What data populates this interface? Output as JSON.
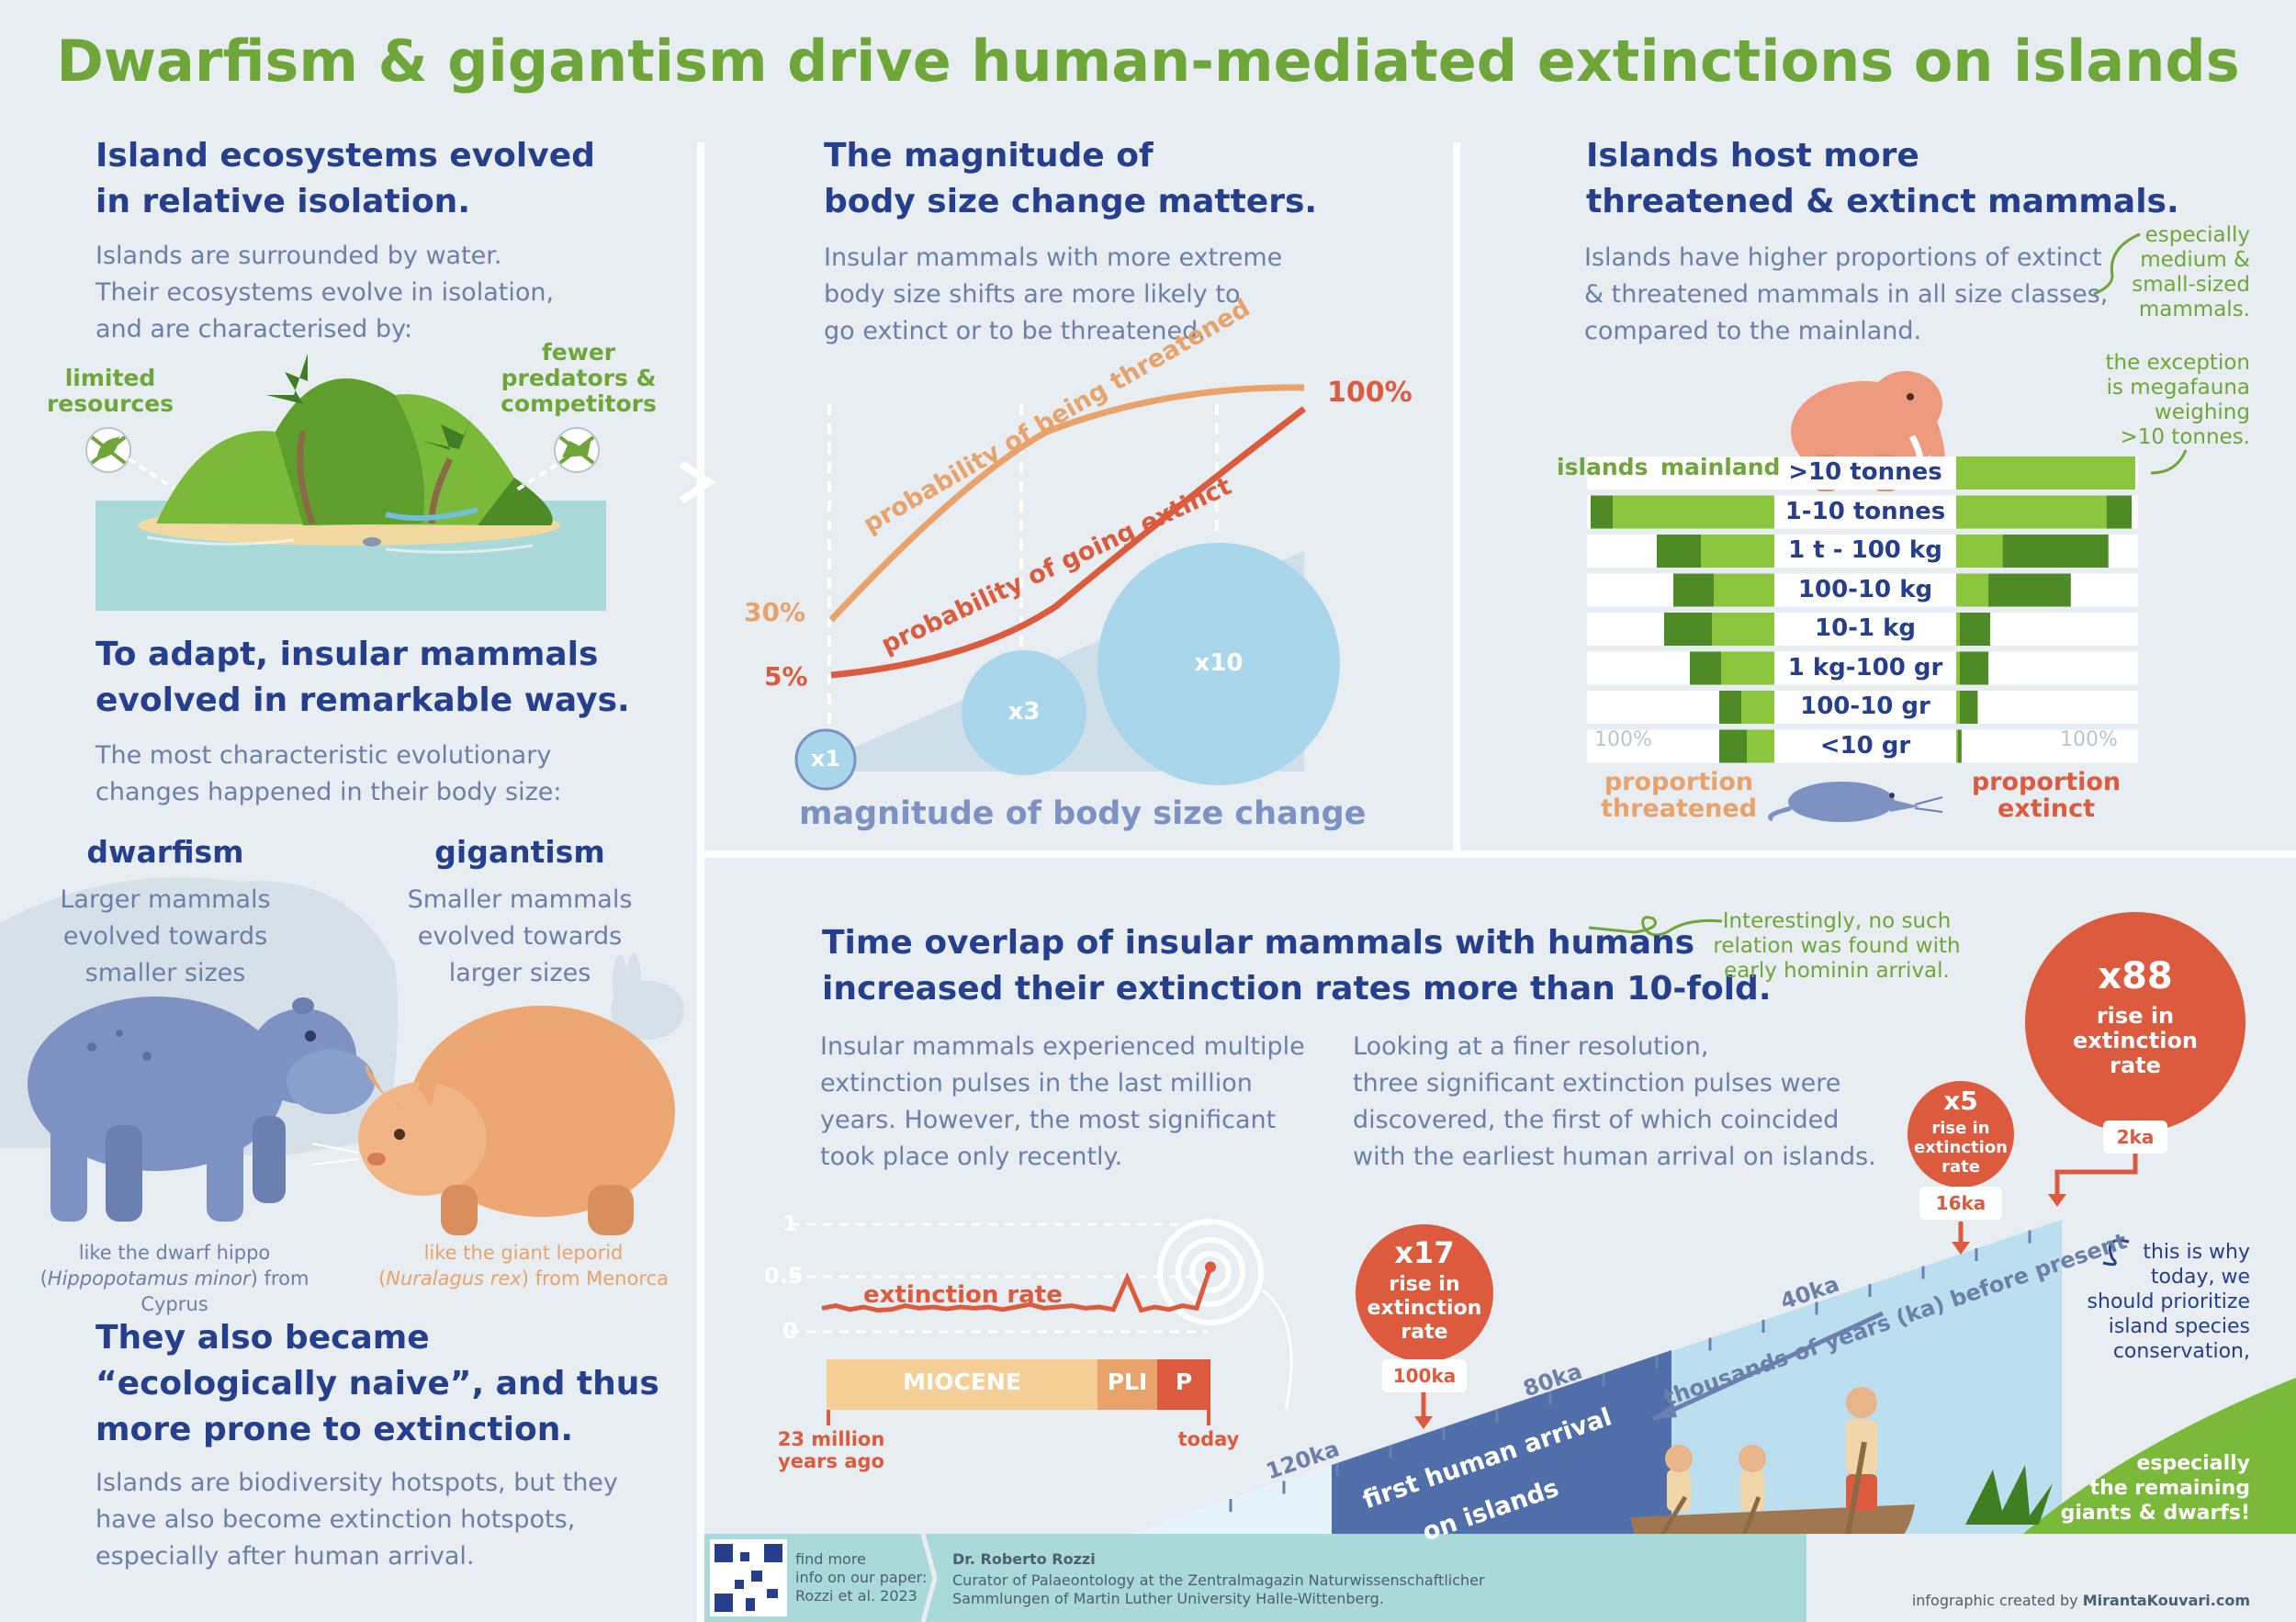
{
  "title": "Dwarfism & gigantism drive human-mediated extinctions on islands",
  "panel_isolation": {
    "heading_l1": "Island ecosystems evolved",
    "heading_l2": "in relative isolation.",
    "body_l1": "Islands are surrounded by water.",
    "body_l2": "Their ecosystems evolve in isolation,",
    "body_l3": "and are characterised by:",
    "label_resources_l1": "limited",
    "label_resources_l2": "resources",
    "label_predators_l1": "fewer",
    "label_predators_l2": "predators &",
    "label_predators_l3": "competitors"
  },
  "panel_adapt": {
    "heading_l1": "To adapt, insular mammals",
    "heading_l2": "evolved in remarkable ways.",
    "body_l1": "The most characteristic evolutionary",
    "body_l2": "changes happened in their body size:",
    "dwarfism_title": "dwarfism",
    "dwarfism_l1": "Larger mammals",
    "dwarfism_l2": "evolved towards",
    "dwarfism_l3": "smaller sizes",
    "gigantism_title": "gigantism",
    "gigantism_l1": "Smaller mammals",
    "gigantism_l2": "evolved towards",
    "gigantism_l3": "larger sizes",
    "hippo_caption_l1": "like the dwarf hippo",
    "hippo_caption_l2_pre": "(",
    "hippo_caption_l2_sci": "Hippopotamus minor",
    "hippo_caption_l2_post": ") from Cyprus",
    "leporid_caption_l1": "like the giant leporid",
    "leporid_caption_l2_pre": "(",
    "leporid_caption_l2_sci": "Nuralagus rex",
    "leporid_caption_l2_post": ") from Menorca"
  },
  "panel_naive": {
    "heading_l1": "They also became",
    "heading_l2": "“ecologically naive”, and thus",
    "heading_l3": "more prone to extinction.",
    "body_l1": "Islands are biodiversity hotspots, but they",
    "body_l2": "have also become extinction hotspots,",
    "body_l3": "especially after human arrival."
  },
  "panel_magnitude": {
    "heading_l1": "The magnitude of",
    "heading_l2": "body size change matters.",
    "body_l1": "Insular mammals with more extreme",
    "body_l2": "body size shifts are more likely to",
    "body_l3": "go extinct or to be threatened.",
    "curve_threatened": "probability of being threatened",
    "curve_extinct": "probability of going extinct",
    "label_30": "30%",
    "label_5": "5%",
    "label_100": "100%",
    "bubble_x1": "x1",
    "bubble_x3": "x3",
    "bubble_x10": "x10",
    "xlabel": "magnitude of body size change"
  },
  "panel_threatened": {
    "heading_l1": "Islands host more",
    "heading_l2": "threatened & extinct mammals.",
    "body_l1": "Islands have higher proportions of extinct",
    "body_l2": "& threatened mammals in all size classes,",
    "body_l3": "compared to the mainland.",
    "note_medium_l1": "especially",
    "note_medium_l2": "medium &",
    "note_medium_l3": "small-sized",
    "note_medium_l4": "mammals.",
    "note_mega_l1": "the exception",
    "note_mega_l2": "is megafauna",
    "note_mega_l3": "weighing",
    "note_mega_l4": ">10 tonnes.",
    "legend_islands": "islands",
    "legend_mainland": "mainland",
    "axis_left_100": "100%",
    "axis_right_100": "100%",
    "label_threatened_l1": "proportion",
    "label_threatened_l2": "threatened",
    "label_extinct_l1": "proportion",
    "label_extinct_l2": "extinct"
  },
  "chart_data": {
    "type": "bar",
    "categories": [
      ">10 tonnes",
      "1-10 tonnes",
      "1 t - 100 kg",
      "100-10 kg",
      "10-1 kg",
      "1 kg-100 gr",
      "100-10 gr",
      "<10 gr"
    ],
    "threatened_islands": [
      0,
      1.0,
      0.64,
      0.55,
      0.6,
      0.46,
      0.3,
      0.3
    ],
    "threatened_mainland": [
      0,
      0.88,
      0.4,
      0.33,
      0.34,
      0.29,
      0.18,
      0.15
    ],
    "extinct_islands": [
      1.0,
      0.98,
      0.85,
      0.64,
      0.19,
      0.18,
      0.12,
      0.03
    ],
    "extinct_mainland": [
      1.0,
      0.84,
      0.26,
      0.18,
      0.02,
      0.02,
      0.02,
      0.01
    ]
  },
  "panel_time": {
    "heading_l1": "Time overlap of insular mammals with humans",
    "heading_l2": "increased their extinction rates more than 10-fold.",
    "note_hominin_l1": "Interestingly, no such",
    "note_hominin_l2": "relation was found with",
    "note_hominin_l3": "early hominin arrival.",
    "body_left_l1": "Insular mammals experienced multiple",
    "body_left_l2": "extinction pulses in the last million",
    "body_left_l3": "years. However, the most significant",
    "body_left_l4": "took place only recently.",
    "body_right_l1": "Looking at a finer resolution,",
    "body_right_l2": "three significant extinction pulses were",
    "body_right_l3": "discovered, the first of which coincided",
    "body_right_l4": "with the earliest human arrival on islands.",
    "rate_y1": "1",
    "rate_y05": "0.5",
    "rate_y0": "0",
    "rate_label": "extinction rate",
    "epoch_miocene": "MIOCENE",
    "epoch_pli": "PLI",
    "epoch_p": "P",
    "start_l1": "23 million",
    "start_l2": "years ago",
    "end_label": "today",
    "pulse_x17": "x17",
    "pulse_x5": "x5",
    "pulse_x88": "x88",
    "pulse_rise_l1": "rise in",
    "pulse_rise_l2": "extinction",
    "pulse_rise_l3": "rate",
    "pulse_100ka": "100ka",
    "pulse_16ka": "16ka",
    "pulse_2ka": "2ka",
    "tick_120ka": "120ka",
    "tick_80ka": "80ka",
    "tick_40ka": "40ka",
    "axis_time": "thousands of years (ka) before present",
    "arrival_l1": "first human arrival",
    "arrival_l2": "on islands",
    "note_today_l1": "this is why",
    "note_today_l2": "today, we",
    "note_today_l3": "should prioritize",
    "note_today_l4": "island species",
    "note_today_l5": "conservation,",
    "note_giants_l1": "especially",
    "note_giants_l2": "the remaining",
    "note_giants_l3": "giants & dwarfs!"
  },
  "chart_rate": {
    "type": "line",
    "ylim": [
      0,
      1
    ],
    "x_label_start": "23 million years ago",
    "x_label_end": "today",
    "values": [
      0.08,
      0.12,
      0.06,
      0.1,
      0.05,
      0.06,
      0.12,
      0.08,
      0.1,
      0.07,
      0.1,
      0.08,
      0.1,
      0.06,
      0.1,
      0.14,
      0.08,
      0.1,
      0.12,
      0.08,
      0.1,
      0.06,
      0.55,
      0.05,
      0.1,
      0.06,
      0.12,
      0.08,
      0.72
    ]
  },
  "footer": {
    "find_l1": "find more",
    "find_l2": "info on our paper:",
    "find_l3": "Rozzi et al. 2023",
    "author": "Dr. Roberto Rozzi",
    "role_l1": "Curator of Palaeontology at the Zentralmagazin Naturwissenschaftlicher",
    "role_l2": "Sammlungen of Martin Luther University Halle-Wittenberg.",
    "credit_pre": "infographic created by ",
    "credit_name": "MirantaKouvari.com"
  },
  "colors": {
    "title_green": "#6fa63a",
    "heading_blue": "#263f8c",
    "body_slate": "#6b7fa8",
    "orange": "#e8a26a",
    "red": "#dc5a3e",
    "bubble_blue": "#a9d6ea",
    "panel_white": "#ffffff"
  }
}
